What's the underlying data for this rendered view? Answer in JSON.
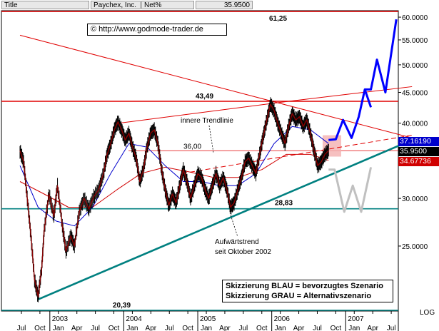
{
  "header": {
    "title_label": "Title",
    "symbol": "Paychex, Inc.",
    "mode": "Net%",
    "last_value": "35.9500"
  },
  "copyright": "© http://www.godmode-trader.de",
  "colors": {
    "price": "#8b0000",
    "ma_blue": "#0000cc",
    "ma_red": "#d00000",
    "resistance": "#e00000",
    "support": "#008080",
    "scenario_blue": "#0000ff",
    "scenario_gray": "#c0c0c0",
    "highlight": "#f4b0b0"
  },
  "chart_data": {
    "type": "line",
    "title": "",
    "ylabel": "",
    "scale": "log",
    "ylim": [
      19.5,
      61.5
    ],
    "y_ticks": [
      {
        "value": 60,
        "label": "60.0000"
      },
      {
        "value": 55,
        "label": "55.0000"
      },
      {
        "value": 50,
        "label": "50.0000"
      },
      {
        "value": 45,
        "label": "45.0000"
      },
      {
        "value": 40,
        "label": "40.0000"
      },
      {
        "value": 30,
        "label": "30.0000"
      },
      {
        "value": 25,
        "label": "25.0000"
      }
    ],
    "axis_corner_label": "LOG",
    "x_months": [
      "Jul",
      "Oct",
      "Jan",
      "Apr",
      "Jul",
      "Oct",
      "Jan",
      "Apr",
      "Jul",
      "Oct",
      "Jan",
      "Apr",
      "Jul",
      "Oct",
      "Jan",
      "Apr",
      "Jul",
      "Oct",
      "Jan",
      "Apr",
      "Jul"
    ],
    "x_years": [
      {
        "label": "2003",
        "month_index": 2
      },
      {
        "label": "2004",
        "month_index": 6
      },
      {
        "label": "2005",
        "month_index": 10
      },
      {
        "label": "2006",
        "month_index": 14
      },
      {
        "label": "2007",
        "month_index": 18
      }
    ],
    "price_series": [
      {
        "t": 0,
        "v": 36.0
      },
      {
        "t": 0.15,
        "v": 34.5
      },
      {
        "t": 0.3,
        "v": 30.0
      },
      {
        "t": 0.45,
        "v": 26.0
      },
      {
        "t": 0.6,
        "v": 22.0
      },
      {
        "t": 0.75,
        "v": 20.6
      },
      {
        "t": 0.9,
        "v": 23.0
      },
      {
        "t": 1.0,
        "v": 26.5
      },
      {
        "t": 1.2,
        "v": 30.5
      },
      {
        "t": 1.4,
        "v": 28.0
      },
      {
        "t": 1.55,
        "v": 31.5
      },
      {
        "t": 1.75,
        "v": 27.0
      },
      {
        "t": 1.9,
        "v": 24.5
      },
      {
        "t": 2.1,
        "v": 26.0
      },
      {
        "t": 2.25,
        "v": 25.0
      },
      {
        "t": 2.45,
        "v": 28.5
      },
      {
        "t": 2.65,
        "v": 30.0
      },
      {
        "t": 2.85,
        "v": 28.8
      },
      {
        "t": 3.05,
        "v": 30.2
      },
      {
        "t": 3.25,
        "v": 31.0
      },
      {
        "t": 3.45,
        "v": 33.0
      },
      {
        "t": 3.6,
        "v": 35.5
      },
      {
        "t": 3.75,
        "v": 37.0
      },
      {
        "t": 3.9,
        "v": 39.0
      },
      {
        "t": 4.05,
        "v": 40.2
      },
      {
        "t": 4.2,
        "v": 39.0
      },
      {
        "t": 4.35,
        "v": 37.5
      },
      {
        "t": 4.5,
        "v": 38.5
      },
      {
        "t": 4.65,
        "v": 36.5
      },
      {
        "t": 4.8,
        "v": 35.0
      },
      {
        "t": 4.95,
        "v": 32.0
      },
      {
        "t": 5.1,
        "v": 33.5
      },
      {
        "t": 5.25,
        "v": 36.5
      },
      {
        "t": 5.4,
        "v": 38.5
      },
      {
        "t": 5.55,
        "v": 39.0
      },
      {
        "t": 5.7,
        "v": 37.0
      },
      {
        "t": 5.85,
        "v": 33.5
      },
      {
        "t": 6.0,
        "v": 31.0
      },
      {
        "t": 6.15,
        "v": 29.2
      },
      {
        "t": 6.3,
        "v": 30.5
      },
      {
        "t": 6.45,
        "v": 29.5
      },
      {
        "t": 6.6,
        "v": 31.5
      },
      {
        "t": 6.75,
        "v": 33.5
      },
      {
        "t": 6.9,
        "v": 32.0
      },
      {
        "t": 7.05,
        "v": 30.0
      },
      {
        "t": 7.2,
        "v": 31.5
      },
      {
        "t": 7.35,
        "v": 33.0
      },
      {
        "t": 7.5,
        "v": 32.5
      },
      {
        "t": 7.65,
        "v": 31.0
      },
      {
        "t": 7.8,
        "v": 30.0
      },
      {
        "t": 7.95,
        "v": 31.5
      },
      {
        "t": 8.1,
        "v": 33.0
      },
      {
        "t": 8.25,
        "v": 31.5
      },
      {
        "t": 8.4,
        "v": 32.5
      },
      {
        "t": 8.55,
        "v": 31.0
      },
      {
        "t": 8.7,
        "v": 29.0
      },
      {
        "t": 8.85,
        "v": 29.5
      },
      {
        "t": 9.0,
        "v": 31.0
      },
      {
        "t": 9.15,
        "v": 32.5
      },
      {
        "t": 9.3,
        "v": 34.5
      },
      {
        "t": 9.45,
        "v": 35.0
      },
      {
        "t": 9.6,
        "v": 34.0
      },
      {
        "t": 9.75,
        "v": 33.0
      },
      {
        "t": 9.9,
        "v": 35.5
      },
      {
        "t": 10.05,
        "v": 38.0
      },
      {
        "t": 10.2,
        "v": 40.5
      },
      {
        "t": 10.35,
        "v": 43.0
      },
      {
        "t": 10.5,
        "v": 42.0
      },
      {
        "t": 10.65,
        "v": 40.0
      },
      {
        "t": 10.8,
        "v": 38.5
      },
      {
        "t": 10.95,
        "v": 37.0
      },
      {
        "t": 11.1,
        "v": 39.5
      },
      {
        "t": 11.25,
        "v": 41.5
      },
      {
        "t": 11.4,
        "v": 40.5
      },
      {
        "t": 11.55,
        "v": 41.0
      },
      {
        "t": 11.7,
        "v": 39.5
      },
      {
        "t": 11.85,
        "v": 40.5
      },
      {
        "t": 12.0,
        "v": 38.5
      },
      {
        "t": 12.15,
        "v": 36.0
      },
      {
        "t": 12.3,
        "v": 34.0
      },
      {
        "t": 12.45,
        "v": 34.5
      },
      {
        "t": 12.6,
        "v": 35.5
      },
      {
        "t": 12.75,
        "v": 36.0
      }
    ],
    "ma_blue_series": [
      {
        "t": 0,
        "v": 34.0
      },
      {
        "t": 0.75,
        "v": 29.0
      },
      {
        "t": 1.5,
        "v": 27.5
      },
      {
        "t": 2.25,
        "v": 27.0
      },
      {
        "t": 3.0,
        "v": 29.0
      },
      {
        "t": 3.75,
        "v": 33.0
      },
      {
        "t": 4.5,
        "v": 37.0
      },
      {
        "t": 5.25,
        "v": 36.5
      },
      {
        "t": 6.0,
        "v": 34.0
      },
      {
        "t": 6.75,
        "v": 32.0
      },
      {
        "t": 7.5,
        "v": 32.0
      },
      {
        "t": 8.25,
        "v": 31.5
      },
      {
        "t": 9.0,
        "v": 31.5
      },
      {
        "t": 9.75,
        "v": 33.0
      },
      {
        "t": 10.5,
        "v": 37.0
      },
      {
        "t": 11.25,
        "v": 39.5
      },
      {
        "t": 12.0,
        "v": 39.0
      },
      {
        "t": 12.75,
        "v": 37.0
      }
    ],
    "ma_red_series": [
      {
        "t": 0,
        "v": 32.0
      },
      {
        "t": 1.0,
        "v": 30.5
      },
      {
        "t": 2.0,
        "v": 29.0
      },
      {
        "t": 3.0,
        "v": 29.0
      },
      {
        "t": 4.0,
        "v": 31.0
      },
      {
        "t": 5.0,
        "v": 33.0
      },
      {
        "t": 6.0,
        "v": 33.8
      },
      {
        "t": 7.0,
        "v": 33.2
      },
      {
        "t": 8.0,
        "v": 32.5
      },
      {
        "t": 9.0,
        "v": 32.5
      },
      {
        "t": 10.0,
        "v": 33.5
      },
      {
        "t": 11.0,
        "v": 35.5
      },
      {
        "t": 12.0,
        "v": 35.5
      },
      {
        "t": 12.75,
        "v": 34.7
      }
    ],
    "scenario_blue": [
      {
        "t": 12.75,
        "v": 37.5
      },
      {
        "t": 13.05,
        "v": 37.6
      },
      {
        "t": 13.35,
        "v": 40.5
      },
      {
        "t": 13.7,
        "v": 37.8
      },
      {
        "t": 14.0,
        "v": 41.0
      },
      {
        "t": 14.25,
        "v": 45.5
      },
      {
        "t": 14.5,
        "v": 45.5
      },
      {
        "t": 14.75,
        "v": 51.0
      },
      {
        "t": 15.1,
        "v": 45.0
      },
      {
        "t": 15.55,
        "v": 59.5
      }
    ],
    "scenario_blue_branch": [
      {
        "t": 14.25,
        "v": 45.5
      },
      {
        "t": 14.5,
        "v": 42.5
      }
    ],
    "scenario_gray": [
      {
        "t": 12.75,
        "v": 33.5
      },
      {
        "t": 13.0,
        "v": 33.5
      },
      {
        "t": 13.4,
        "v": 28.5
      },
      {
        "t": 13.75,
        "v": 31.5
      },
      {
        "t": 14.1,
        "v": 28.5
      },
      {
        "t": 14.5,
        "v": 33.8
      }
    ],
    "hlines": [
      {
        "value": 43.49,
        "label": "43,49",
        "color": "#e00000"
      },
      {
        "value": 28.83,
        "label": "28,83",
        "color": "#008080"
      },
      {
        "value": 36.0,
        "label": "36,00",
        "color": "#e00000"
      },
      {
        "value": 61.25,
        "label": "61,25",
        "color": "#e00000"
      },
      {
        "value": 20.39,
        "label": "20,39",
        "color": "#008080"
      }
    ],
    "trendlines": [
      {
        "name": "descending",
        "from": {
          "t": 0,
          "v": 56.0
        },
        "to": {
          "t": 16.2,
          "v": 37.8
        },
        "color": "#e00000"
      },
      {
        "name": "inner-upper",
        "from": {
          "t": 4.1,
          "v": 40.0
        },
        "to": {
          "t": 11.1,
          "v": 43.49
        },
        "color": "#e00000"
      },
      {
        "name": "channel-upper",
        "from": {
          "t": 11.1,
          "v": 43.49
        },
        "to": {
          "t": 16.2,
          "v": 46.0
        },
        "color": "#e00000"
      },
      {
        "name": "inner-dashed",
        "from": {
          "t": 6.7,
          "v": 33.0
        },
        "to": {
          "t": 16.2,
          "v": 38.2
        },
        "color": "#e00000"
      },
      {
        "name": "uptrend",
        "from": {
          "t": 0.75,
          "v": 20.39
        },
        "to": {
          "t": 16.2,
          "v": 37.5
        },
        "color": "#008080"
      }
    ],
    "annotations": [
      {
        "text": "innere Trendlinie"
      },
      {
        "text": "Aufwärtstrend"
      },
      {
        "text": "seit Oktober 2002"
      }
    ],
    "price_tags": [
      {
        "text": "37.16190",
        "bg": "#0000cc",
        "fg": "#ffffff"
      },
      {
        "text": "35.9500",
        "bg": "#000000",
        "fg": "#ffffff"
      },
      {
        "text": "34.67736",
        "bg": "#d00000",
        "fg": "#ffffff"
      }
    ],
    "legend": [
      "Skizzierung BLAU = bevorzugtes Szenario",
      "Skizzierung GRAU = Alternativszenario"
    ]
  }
}
